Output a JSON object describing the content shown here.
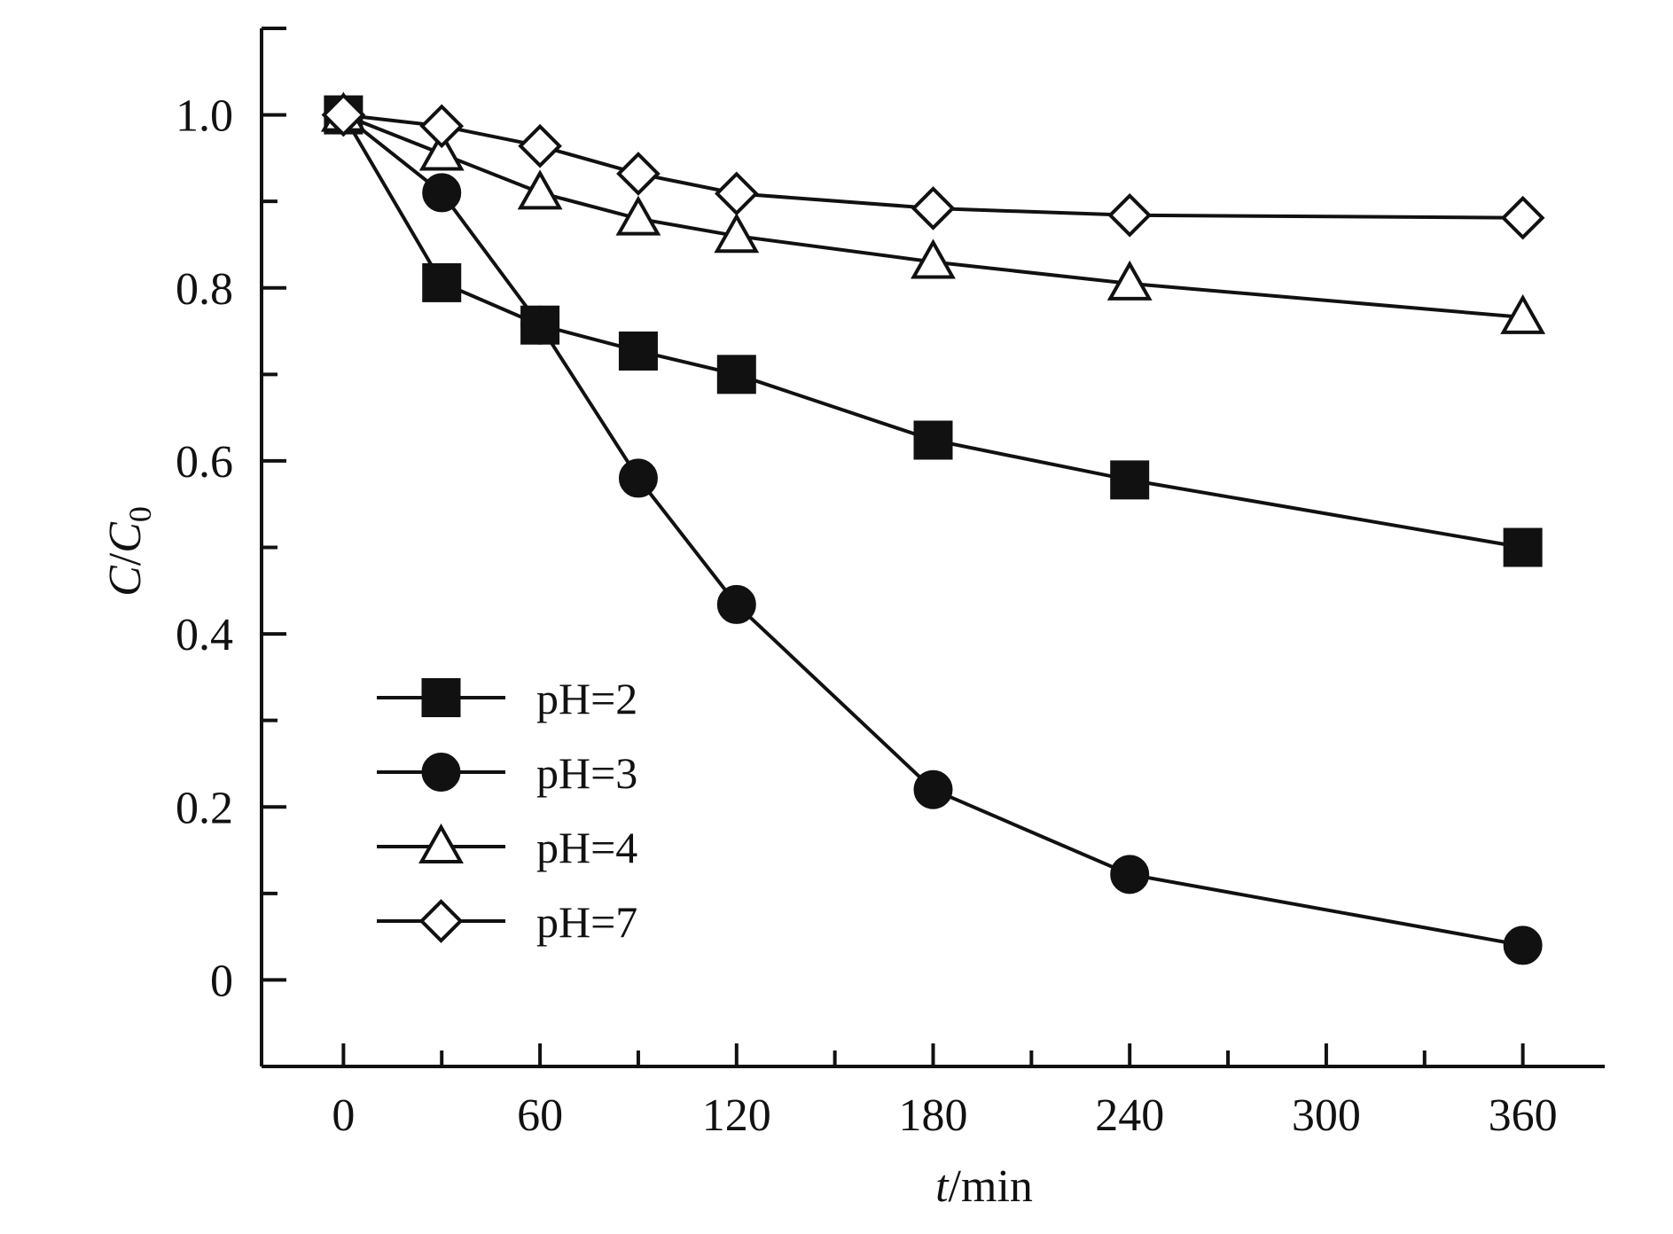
{
  "chart_data": {
    "type": "line",
    "title": "",
    "xlabel_italic": "t",
    "xlabel_unit": "/min",
    "ylabel_c": "C",
    "ylabel_slash": "/",
    "ylabel_c0": "C",
    "ylabel_sub": "0",
    "xlim": [
      -25,
      385
    ],
    "ylim": [
      -0.1,
      1.1
    ],
    "x_ticks": [
      0,
      60,
      120,
      180,
      240,
      300,
      360
    ],
    "x_tick_labels": [
      "0",
      "60",
      "120",
      "180",
      "240",
      "300",
      "360"
    ],
    "x_minor_ticks": [
      30,
      90,
      150,
      210,
      270,
      330
    ],
    "y_ticks": [
      0,
      0.2,
      0.4,
      0.6,
      0.8,
      1.0
    ],
    "y_tick_labels": [
      "0",
      "0.2",
      "0.4",
      "0.6",
      "0.8",
      "1.0"
    ],
    "y_minor_ticks": [
      0.1,
      0.3,
      0.5,
      0.7,
      0.9
    ],
    "legend_position": "bottom-left",
    "series": [
      {
        "name": "pH=2",
        "marker": "square-filled",
        "x": [
          0,
          30,
          60,
          90,
          120,
          180,
          240,
          360
        ],
        "y": [
          1.0,
          0.806,
          0.757,
          0.727,
          0.7,
          0.624,
          0.578,
          0.5
        ]
      },
      {
        "name": "pH=3",
        "marker": "circle-filled",
        "x": [
          0,
          30,
          60,
          90,
          120,
          180,
          240,
          360
        ],
        "y": [
          1.0,
          0.91,
          0.757,
          0.58,
          0.434,
          0.22,
          0.122,
          0.04
        ]
      },
      {
        "name": "pH=4",
        "marker": "triangle-open",
        "x": [
          0,
          30,
          60,
          90,
          120,
          180,
          240,
          360
        ],
        "y": [
          1.0,
          0.955,
          0.91,
          0.88,
          0.86,
          0.83,
          0.805,
          0.766
        ]
      },
      {
        "name": "pH=7",
        "marker": "diamond-open",
        "x": [
          0,
          30,
          60,
          90,
          120,
          180,
          240,
          360
        ],
        "y": [
          1.0,
          0.987,
          0.964,
          0.932,
          0.909,
          0.892,
          0.884,
          0.881
        ]
      }
    ]
  }
}
